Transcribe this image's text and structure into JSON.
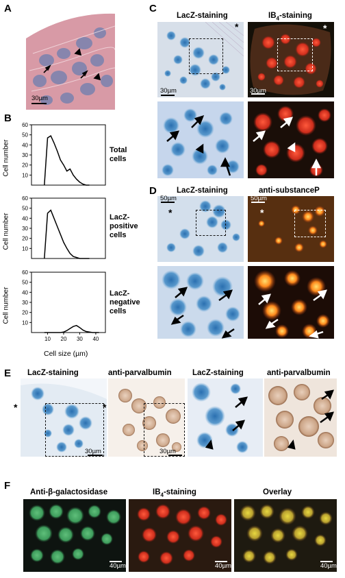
{
  "panels": {
    "A": {
      "label": "A",
      "scale": "30µm"
    },
    "B": {
      "label": "B"
    },
    "C": {
      "label": "C",
      "left_title": "LacZ-staining",
      "right_title_main": "IB",
      "right_title_sub": "4",
      "right_title_tail": "-staining",
      "scale_left": "30µm",
      "scale_right": "30µm",
      "star": "*"
    },
    "D": {
      "label": "D",
      "left_title": "LacZ-staining",
      "right_title": "anti-substanceP",
      "scale_left": "50µm",
      "scale_right": "50µm",
      "star": "*"
    },
    "E": {
      "label": "E",
      "titles": [
        "LacZ-staining",
        "anti-parvalbumin",
        "LacZ-staining",
        "anti-parvalbumin"
      ],
      "scale1": "30µm",
      "scale2": "30µm",
      "star": "*"
    },
    "F": {
      "label": "F",
      "titles": [
        "Anti-β-galactosidase",
        "IB4-staining",
        "Overlay"
      ],
      "ib_main": "IB",
      "ib_sub": "4",
      "ib_tail": "-staining",
      "scale": "40µm"
    }
  },
  "chart_data": [
    {
      "type": "line",
      "ylabel": "Cell number",
      "series_label": [
        "Total",
        "cells"
      ],
      "ylim": [
        0,
        60
      ],
      "yticks": [
        10,
        20,
        30,
        40,
        50,
        60
      ],
      "x": [
        8,
        10,
        12,
        14,
        16,
        18,
        20,
        22,
        24,
        26,
        28,
        30,
        32,
        34,
        36
      ],
      "values": [
        0,
        47,
        49,
        42,
        34,
        25,
        20,
        14,
        16,
        10,
        6,
        3,
        1,
        0,
        0
      ]
    },
    {
      "type": "line",
      "ylabel": "Cell number",
      "series_label": [
        "LacZ-",
        "positive",
        "cells"
      ],
      "ylim": [
        0,
        60
      ],
      "yticks": [
        10,
        20,
        30,
        40,
        50,
        60
      ],
      "x": [
        8,
        10,
        12,
        14,
        16,
        18,
        20,
        22,
        24,
        26,
        28,
        30,
        32,
        34,
        36
      ],
      "values": [
        0,
        45,
        48,
        40,
        32,
        24,
        16,
        10,
        5,
        2,
        1,
        0,
        0,
        0,
        0
      ]
    },
    {
      "type": "line",
      "ylabel": "Cell number",
      "xlabel": "Cell size (µm)",
      "series_label": [
        "LacZ-",
        "negative",
        "cells"
      ],
      "ylim": [
        0,
        60
      ],
      "yticks": [
        10,
        20,
        30,
        40,
        50,
        60
      ],
      "xticks": [
        10,
        20,
        30,
        40
      ],
      "x": [
        8,
        12,
        16,
        18,
        20,
        22,
        24,
        26,
        28,
        30,
        32,
        34,
        38,
        42
      ],
      "values": [
        0,
        0,
        0,
        0,
        0.5,
        2,
        4,
        6,
        7,
        5,
        2.5,
        1,
        0,
        0
      ]
    }
  ]
}
